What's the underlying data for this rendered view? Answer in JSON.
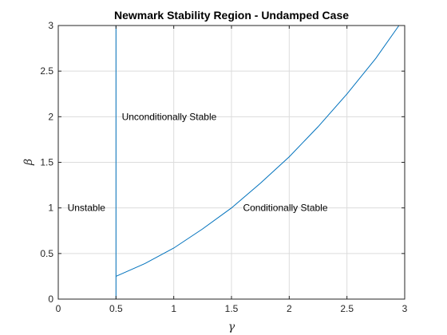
{
  "chart_data": {
    "type": "line",
    "title": "Newmark Stability Region - Undamped Case",
    "xlabel": "γ",
    "ylabel": "β",
    "xlim": [
      0,
      3
    ],
    "ylim": [
      0,
      3
    ],
    "xticks": [
      0,
      0.5,
      1,
      1.5,
      2,
      2.5,
      3
    ],
    "xtick_labels": [
      "0",
      "0.5",
      "1",
      "1.5",
      "2",
      "2.5",
      "3"
    ],
    "yticks": [
      0,
      0.5,
      1,
      1.5,
      2,
      2.5,
      3
    ],
    "ytick_labels": [
      "0",
      "0.5",
      "1",
      "1.5",
      "2",
      "2.5",
      "3"
    ],
    "grid": true,
    "line_color": "#0072bd",
    "series": [
      {
        "x": [
          0.5,
          0.5
        ],
        "y": [
          0,
          3
        ]
      },
      {
        "x": [
          0.5,
          0.75,
          1.0,
          1.25,
          1.5,
          1.75,
          2.0,
          2.25,
          2.5,
          2.75,
          2.95
        ],
        "y": [
          0.25,
          0.39,
          0.56,
          0.77,
          1.0,
          1.27,
          1.56,
          1.89,
          2.25,
          2.64,
          3.0
        ]
      }
    ],
    "annotations": [
      {
        "text": "Unstable",
        "x": 0.08,
        "y": 1.0
      },
      {
        "text": "Unconditionally Stable",
        "x": 0.55,
        "y": 2.0
      },
      {
        "text": "Conditionally Stable",
        "x": 1.6,
        "y": 1.0
      }
    ]
  }
}
